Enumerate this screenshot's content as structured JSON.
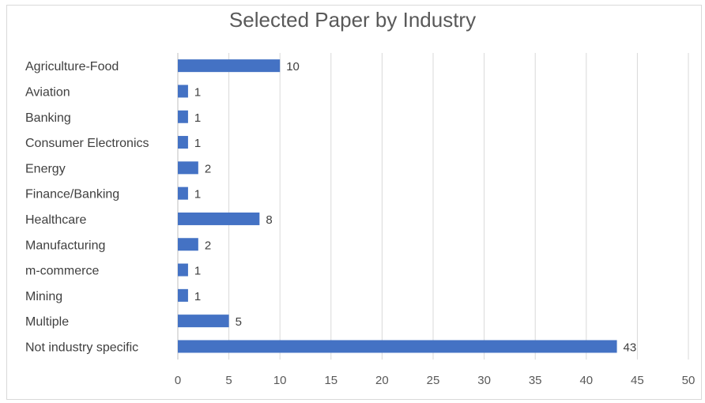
{
  "chart_data": {
    "type": "bar",
    "orientation": "horizontal",
    "title": "Selected Paper by Industry",
    "categories": [
      "Agriculture-Food",
      "Aviation",
      "Banking",
      "Consumer Electronics",
      "Energy",
      "Finance/Banking",
      "Healthcare",
      "Manufacturing",
      "m-commerce",
      "Mining",
      "Multiple",
      "Not industry specific"
    ],
    "values": [
      10,
      1,
      1,
      1,
      2,
      1,
      8,
      2,
      1,
      1,
      5,
      43
    ],
    "xlim": [
      0,
      50
    ],
    "xticks": [
      0,
      5,
      10,
      15,
      20,
      25,
      30,
      35,
      40,
      45,
      50
    ],
    "grid": true,
    "legend": "none",
    "bar_color": "#4472c4",
    "grid_color": "#d9d9d9"
  }
}
